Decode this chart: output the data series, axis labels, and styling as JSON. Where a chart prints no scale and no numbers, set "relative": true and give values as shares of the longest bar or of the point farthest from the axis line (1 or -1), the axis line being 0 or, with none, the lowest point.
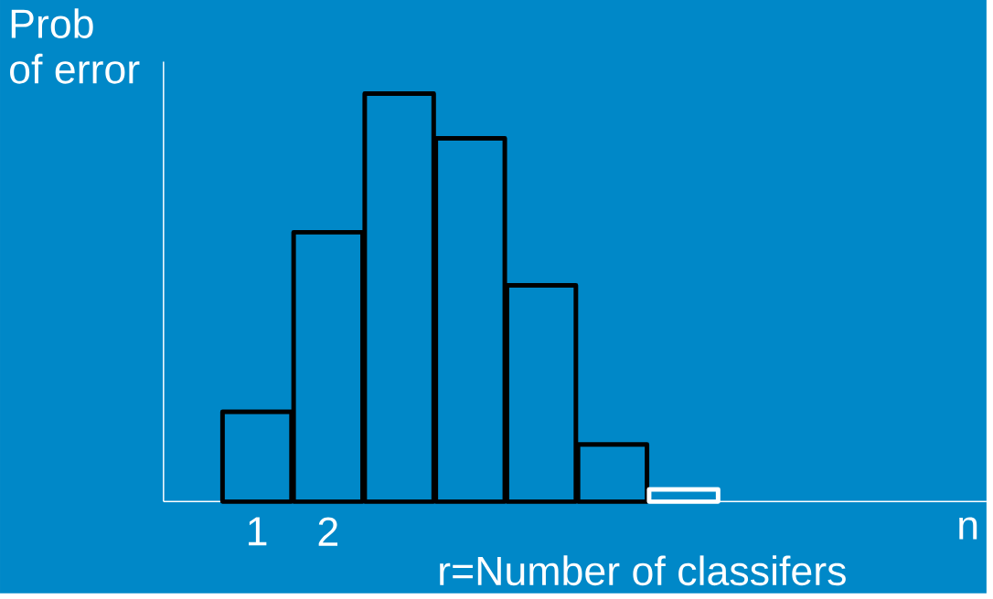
{
  "chart_data": {
    "type": "bar",
    "relative": true,
    "xlabel": "r=Number of classifers",
    "ylabel": "Prob of error",
    "categories": [
      "1",
      "2",
      null,
      null,
      null,
      null,
      null,
      null,
      null,
      null,
      "n"
    ],
    "values": [
      0.22,
      0.66,
      1,
      0.89,
      0.53,
      0.14,
      0.03,
      null,
      null,
      null,
      null
    ],
    "colors": [
      "#000000",
      "#000000",
      "#000000",
      "#000000",
      "#000000",
      "#000000",
      "#ffffff",
      "#000000",
      "#000000",
      "#000000",
      "#000000"
    ]
  }
}
